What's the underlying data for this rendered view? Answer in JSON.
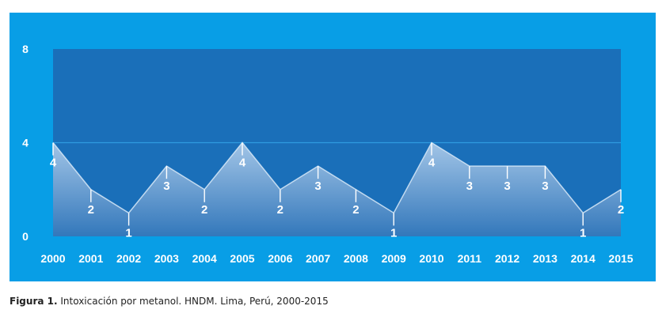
{
  "caption": {
    "label": "Figura 1.",
    "text": "Intoxicación por metanol. HNDM. Lima, Perú, 2000-2015"
  },
  "colors": {
    "panel_background": "#089ee6",
    "plot_background": "#1a6fb9",
    "area_fill_top": "#a9c9e9",
    "area_fill_bottom": "#3478bb",
    "gridline": "#2f9be0",
    "text": "#ffffff"
  },
  "chart_data": {
    "type": "area",
    "title": "",
    "xlabel": "",
    "ylabel": "",
    "categories": [
      "2000",
      "2001",
      "2002",
      "2003",
      "2004",
      "2005",
      "2006",
      "2007",
      "2008",
      "2009",
      "2010",
      "2011",
      "2012",
      "2013",
      "2014",
      "2015"
    ],
    "values": [
      4,
      2,
      1,
      3,
      2,
      4,
      2,
      3,
      2,
      1,
      4,
      3,
      3,
      3,
      1,
      2
    ],
    "ylim": [
      0,
      8
    ],
    "yticks": [
      0,
      4,
      8
    ],
    "grid": true,
    "data_labels": true,
    "legend": "none"
  }
}
